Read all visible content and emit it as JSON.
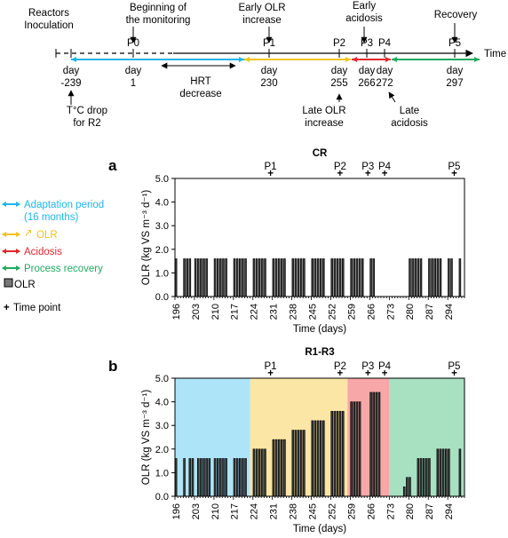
{
  "timeline": {
    "axis_label": "Time",
    "points": [
      {
        "id": "P0",
        "label": "P0",
        "day": "day\n1",
        "x": 1
      },
      {
        "id": "P1",
        "label": "P1",
        "day": "day\n230"
      },
      {
        "id": "P2",
        "label": "P2",
        "day": "day\n255"
      },
      {
        "id": "P3",
        "label": "P3",
        "day": "day\n266"
      },
      {
        "id": "P4",
        "label": "P4",
        "day": "day\n272"
      },
      {
        "id": "P5",
        "label": "P5",
        "day": "day\n297"
      }
    ],
    "start_day": "day\n-239",
    "annotations": {
      "inoculation": "Reactors\nInoculation",
      "monitoring": "Beginning of\nthe monitoring",
      "early_olr": "Early OLR\nincrease",
      "early_acidosis": "Early\nacidosis",
      "recovery": "Recovery",
      "temp_drop": "T°C drop\nfor R2",
      "hrt": "HRT\ndecrease",
      "late_olr": "Late OLR\nincrease",
      "late_acidosis": "Late\nacidosis"
    }
  },
  "legend": {
    "items": [
      {
        "text": "Adaptation period",
        "text2": "(16 months)",
        "color": "#1fb5e8",
        "kind": "arrow"
      },
      {
        "text": "OLR",
        "color": "#f2c21a",
        "kind": "arrow-up",
        "prefix": "↗"
      },
      {
        "text": "Acidosis",
        "color": "#e0282e",
        "kind": "arrow"
      },
      {
        "text": "Process recovery",
        "color": "#1faa60",
        "kind": "arrow"
      },
      {
        "text": "OLR",
        "kind": "box"
      },
      {
        "text": "Time point",
        "kind": "plus"
      }
    ]
  },
  "chart_data": [
    {
      "type": "bar",
      "panel": "a",
      "title": "CR",
      "xlabel": "Time (days)",
      "ylabel": "OLR (kg VS m⁻³ d⁻¹)",
      "xlim": [
        196,
        300
      ],
      "ylim": [
        0,
        5
      ],
      "yticks": [
        "0.0",
        "1.0",
        "2.0",
        "3.0",
        "4.0",
        "5.0"
      ],
      "xticks": [
        "196",
        "203",
        "210",
        "217",
        "224",
        "231",
        "238",
        "245",
        "252",
        "259",
        "266",
        "273",
        "280",
        "287",
        "294"
      ],
      "time_points": [
        {
          "label": "P1",
          "day": 230
        },
        {
          "label": "P2",
          "day": 255
        },
        {
          "label": "P3",
          "day": 265
        },
        {
          "label": "P4",
          "day": 271
        },
        {
          "label": "P5",
          "day": 296
        }
      ],
      "shading": [],
      "bar_groups": [
        {
          "days": [
            196
          ],
          "value": 1.6
        },
        {
          "days": [
            199,
            200,
            201
          ],
          "value": 1.6
        },
        {
          "days": [
            203,
            204,
            205,
            206,
            207
          ],
          "value": 1.6
        },
        {
          "days": [
            210,
            211,
            212,
            213,
            214
          ],
          "value": 1.6
        },
        {
          "days": [
            217,
            218,
            219,
            220,
            221
          ],
          "value": 1.6
        },
        {
          "days": [
            224,
            225,
            226,
            227,
            228
          ],
          "value": 1.6
        },
        {
          "days": [
            231,
            232,
            233,
            234,
            235
          ],
          "value": 1.6
        },
        {
          "days": [
            238,
            239,
            240,
            241,
            242
          ],
          "value": 1.6
        },
        {
          "days": [
            245,
            246,
            247,
            248,
            249
          ],
          "value": 1.6
        },
        {
          "days": [
            252,
            253,
            254,
            255,
            256
          ],
          "value": 1.6
        },
        {
          "days": [
            259,
            260,
            261,
            262,
            263
          ],
          "value": 1.6
        },
        {
          "days": [
            266,
            267
          ],
          "value": 1.6
        },
        {
          "days": [
            280,
            281,
            282,
            283,
            284
          ],
          "value": 1.6
        },
        {
          "days": [
            287,
            288,
            289,
            290,
            291
          ],
          "value": 1.6
        },
        {
          "days": [
            294,
            295
          ],
          "value": 1.6
        },
        {
          "days": [
            298
          ],
          "value": 1.6
        }
      ]
    },
    {
      "type": "bar",
      "panel": "b",
      "title": "R1-R3",
      "xlabel": "Time (days)",
      "ylabel": "OLR (kg VS m⁻³ d⁻¹)",
      "xlim": [
        196,
        300
      ],
      "ylim": [
        0,
        5
      ],
      "yticks": [
        "0.0",
        "1.0",
        "2.0",
        "3.0",
        "4.0",
        "5.0"
      ],
      "xticks": [
        "196",
        "203",
        "210",
        "217",
        "224",
        "231",
        "238",
        "245",
        "252",
        "259",
        "266",
        "273",
        "280",
        "287",
        "294"
      ],
      "time_points": [
        {
          "label": "P1",
          "day": 230
        },
        {
          "label": "P2",
          "day": 255
        },
        {
          "label": "P3",
          "day": 265
        },
        {
          "label": "P4",
          "day": 271
        },
        {
          "label": "P5",
          "day": 296
        }
      ],
      "shading": [
        {
          "from": 196,
          "to": 223,
          "color": "#aee4f8"
        },
        {
          "from": 223,
          "to": 258,
          "color": "#fbe6a5"
        },
        {
          "from": 258,
          "to": 273,
          "color": "#f7a7a7"
        },
        {
          "from": 273,
          "to": 300,
          "color": "#a8e1c2"
        }
      ],
      "bar_groups": [
        {
          "days": [
            196
          ],
          "value": 1.6
        },
        {
          "days": [
            199
          ],
          "value": 1.6
        },
        {
          "days": [
            201,
            202
          ],
          "value": 1.6
        },
        {
          "days": [
            204,
            205,
            206,
            207,
            208
          ],
          "value": 1.6
        },
        {
          "days": [
            210,
            211,
            212,
            213,
            214
          ],
          "value": 1.6
        },
        {
          "days": [
            217,
            218,
            219,
            220,
            221
          ],
          "value": 1.6
        },
        {
          "days": [
            224,
            225,
            226,
            227,
            228
          ],
          "value": 2.0
        },
        {
          "days": [
            231,
            232,
            233,
            234,
            235
          ],
          "value": 2.4
        },
        {
          "days": [
            238,
            239,
            240,
            241,
            242
          ],
          "value": 2.8
        },
        {
          "days": [
            245,
            246,
            247,
            248,
            249
          ],
          "value": 3.2
        },
        {
          "days": [
            252,
            253,
            254,
            255,
            256
          ],
          "value": 3.6
        },
        {
          "days": [
            259,
            260,
            261,
            262
          ],
          "value": 4.0
        },
        {
          "days": [
            266,
            267,
            268,
            269
          ],
          "value": 4.4
        },
        {
          "days": [
            278
          ],
          "value": 0.4
        },
        {
          "days": [
            279,
            280
          ],
          "value": 0.8
        },
        {
          "days": [
            283,
            284,
            285,
            286,
            287
          ],
          "value": 1.6
        },
        {
          "days": [
            290,
            291,
            292,
            293,
            294
          ],
          "value": 2.0
        },
        {
          "days": [
            298
          ],
          "value": 2.0
        }
      ]
    }
  ]
}
